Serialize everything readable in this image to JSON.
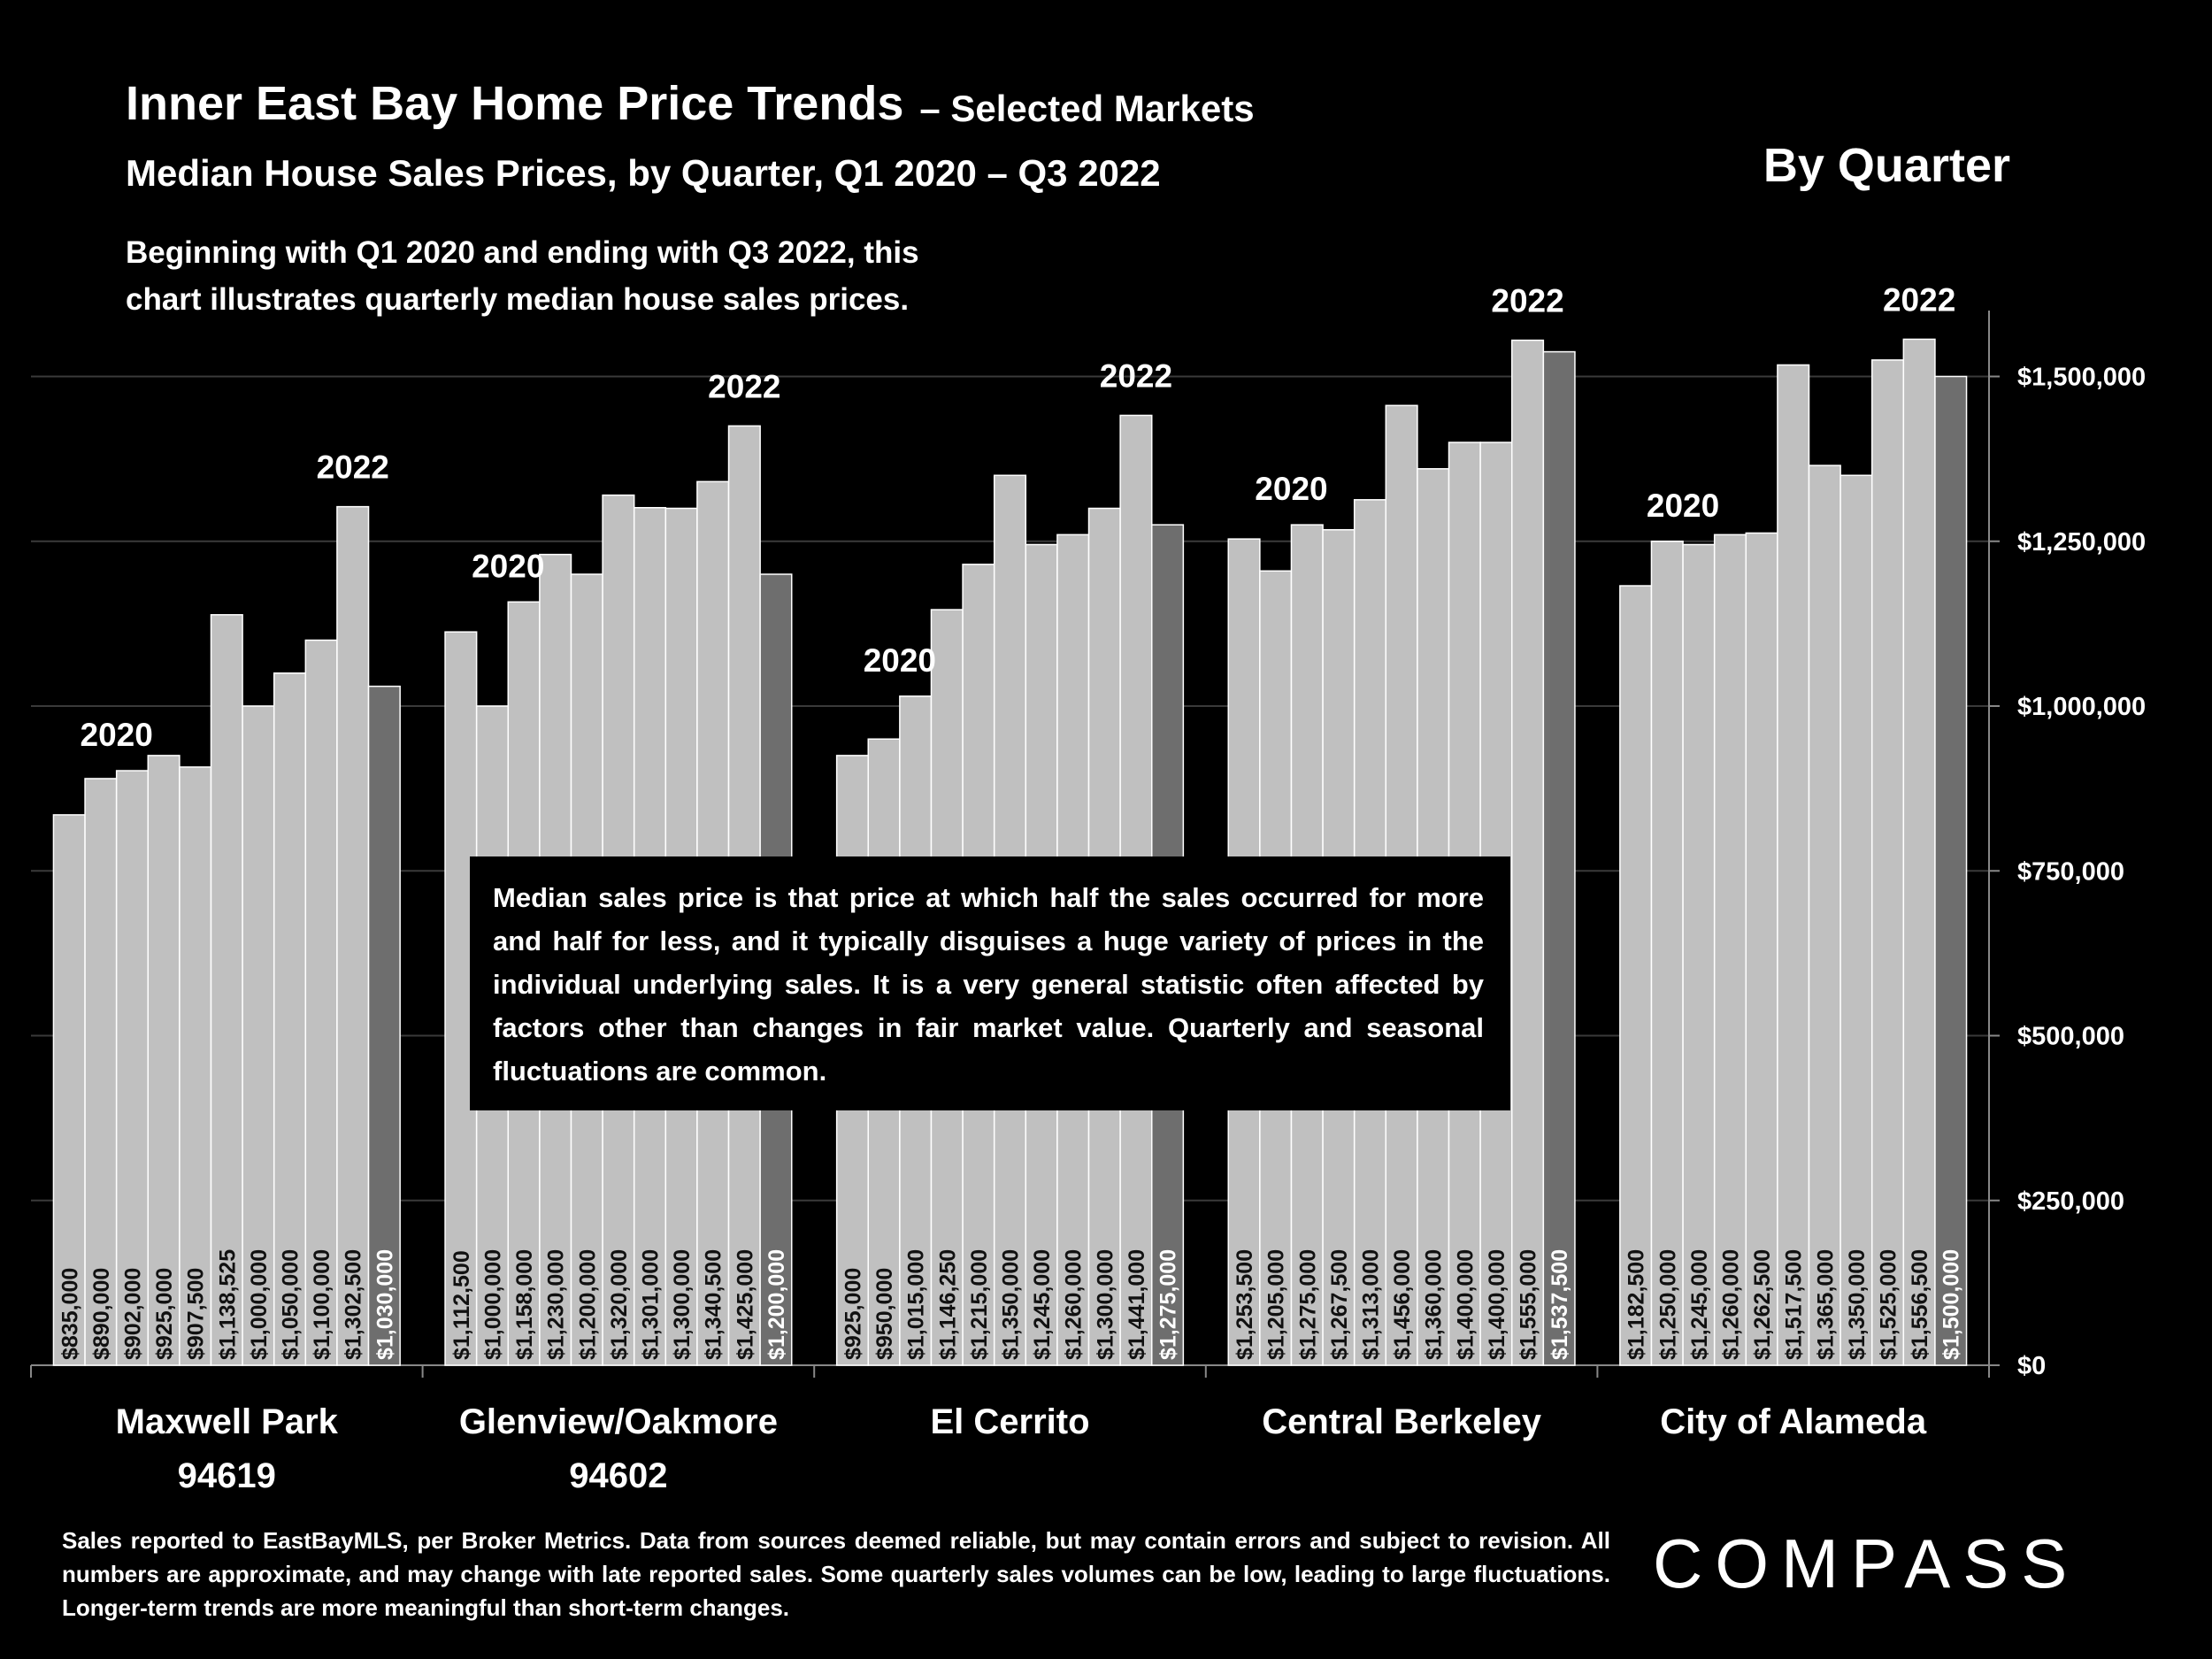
{
  "chart_data": {
    "type": "bar",
    "title": "Inner East Bay Home Price Trends",
    "title_suffix": "– Selected Markets",
    "subtitle": "Median House Sales Prices, by Quarter, Q1 2020 – Q3 2022",
    "description_lines": [
      "Beginning with Q1 2020 and ending with Q3 2022, this",
      "chart illustrates quarterly median house sales prices."
    ],
    "corner_label": "By Quarter",
    "color": "#c0c0c0",
    "last_bar_color": "#6e6e6e",
    "grid": true,
    "y_axis_side": "right",
    "ylim": [
      0,
      1600000
    ],
    "yticks": [
      {
        "value": 0,
        "label": "$0"
      },
      {
        "value": 250000,
        "label": "$250,000"
      },
      {
        "value": 500000,
        "label": "$500,000"
      },
      {
        "value": 750000,
        "label": "$750,000"
      },
      {
        "value": 1000000,
        "label": "$1,000,000"
      },
      {
        "value": 1250000,
        "label": "$1,250,000"
      },
      {
        "value": 1500000,
        "label": "$1,500,000"
      }
    ],
    "groups": [
      {
        "name_lines": [
          "Maxwell Park",
          "94619"
        ],
        "start_label": "2020",
        "end_label": "2022",
        "values": [
          835000,
          890000,
          902000,
          925000,
          907500,
          1138525,
          1000000,
          1050000,
          1100000,
          1302500,
          1030000
        ],
        "value_labels": [
          "$835,000",
          "$890,000",
          "$902,000",
          "$925,000",
          "$907,500",
          "$1,138,525",
          "$1,000,000",
          "$1,050,000",
          "$1,100,000",
          "$1,302,500",
          "$1,030,000"
        ]
      },
      {
        "name_lines": [
          "Glenview/Oakmore",
          "94602"
        ],
        "start_label": "2020",
        "end_label": "2022",
        "values": [
          1112500,
          1000000,
          1158000,
          1230000,
          1200000,
          1320000,
          1301000,
          1300000,
          1340500,
          1425000,
          1200000
        ],
        "value_labels": [
          "$1,112,500",
          "$1,000,000",
          "$1,158,000",
          "$1,230,000",
          "$1,200,000",
          "$1,320,000",
          "$1,301,000",
          "$1,300,000",
          "$1,340,500",
          "$1,425,000",
          "$1,200,000"
        ]
      },
      {
        "name_lines": [
          "El Cerrito"
        ],
        "start_label": "2020",
        "end_label": "2022",
        "values": [
          925000,
          950000,
          1015000,
          1146250,
          1215000,
          1350000,
          1245000,
          1260000,
          1300000,
          1441000,
          1275000
        ],
        "value_labels": [
          "$925,000",
          "$950,000",
          "$1,015,000",
          "$1,146,250",
          "$1,215,000",
          "$1,350,000",
          "$1,245,000",
          "$1,260,000",
          "$1,300,000",
          "$1,441,000",
          "$1,275,000"
        ]
      },
      {
        "name_lines": [
          "Central Berkeley"
        ],
        "start_label": "2020",
        "end_label": "2022",
        "values": [
          1253500,
          1205000,
          1275000,
          1267500,
          1313000,
          1456000,
          1360000,
          1400000,
          1400000,
          1555000,
          1537500
        ],
        "value_labels": [
          "$1,253,500",
          "$1,205,000",
          "$1,275,000",
          "$1,267,500",
          "$1,313,000",
          "$1,456,000",
          "$1,360,000",
          "$1,400,000",
          "$1,400,000",
          "$1,555,000",
          "$1,537,500"
        ]
      },
      {
        "name_lines": [
          "City of Alameda"
        ],
        "start_label": "2020",
        "end_label": "2022",
        "values": [
          1182500,
          1250000,
          1245000,
          1260000,
          1262500,
          1517500,
          1365000,
          1350000,
          1525000,
          1556500,
          1500000
        ],
        "value_labels": [
          "$1,182,500",
          "$1,250,000",
          "$1,245,000",
          "$1,260,000",
          "$1,262,500",
          "$1,517,500",
          "$1,365,000",
          "$1,350,000",
          "$1,525,000",
          "$1,556,500",
          "$1,500,000"
        ]
      }
    ],
    "note": "Median sales price is that price at which half the sales occurred for more and half for less, and it typically disguises a huge variety of prices in the individual underlying sales. It is a very general statistic often affected by factors other than changes in fair market value. Quarterly and seasonal fluctuations are common.",
    "footnote": "Sales reported to EastBayMLS, per Broker Metrics. Data from sources deemed reliable, but may contain errors and subject to revision. All numbers are approximate, and may change with late reported sales.  Some quarterly sales volumes can be low, leading to large fluctuations. Longer-term trends are more meaningful than short-term changes.",
    "logo": "COMPASS"
  }
}
